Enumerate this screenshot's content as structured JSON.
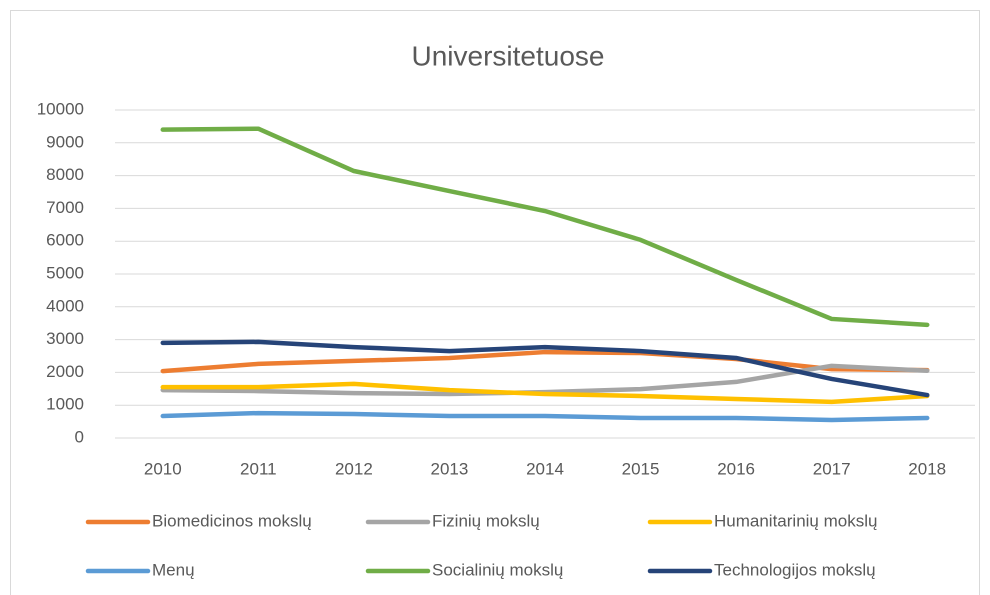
{
  "chart_data": {
    "type": "line",
    "title": "Universitetuose",
    "categories": [
      "2010",
      "2011",
      "2012",
      "2013",
      "2014",
      "2015",
      "2016",
      "2017",
      "2018"
    ],
    "series": [
      {
        "name": "Biomedicinos mokslų",
        "color": "#ed7d31",
        "values": [
          2040,
          2260,
          2350,
          2440,
          2620,
          2590,
          2410,
          2100,
          2070
        ]
      },
      {
        "name": "Fizinių mokslų",
        "color": "#a5a5a5",
        "values": [
          1460,
          1430,
          1370,
          1340,
          1400,
          1490,
          1710,
          2200,
          2050
        ]
      },
      {
        "name": "Humanitarinių mokslų",
        "color": "#ffc000",
        "values": [
          1550,
          1550,
          1650,
          1460,
          1340,
          1280,
          1190,
          1100,
          1280
        ]
      },
      {
        "name": "Menų",
        "color": "#5b9bd5",
        "values": [
          670,
          760,
          730,
          670,
          670,
          610,
          610,
          550,
          610
        ]
      },
      {
        "name": "Socialinių mokslų",
        "color": "#70ad47",
        "values": [
          9400,
          9430,
          8140,
          7530,
          6920,
          6040,
          4820,
          3630,
          3450
        ]
      },
      {
        "name": "Technologijos mokslų",
        "color": "#264478",
        "values": [
          2900,
          2930,
          2770,
          2650,
          2770,
          2650,
          2440,
          1800,
          1310
        ]
      }
    ],
    "ylim": [
      0,
      10000
    ],
    "yticks": [
      0,
      1000,
      2000,
      3000,
      4000,
      5000,
      6000,
      7000,
      8000,
      9000,
      10000
    ],
    "grid": true,
    "legend": "bottom"
  }
}
